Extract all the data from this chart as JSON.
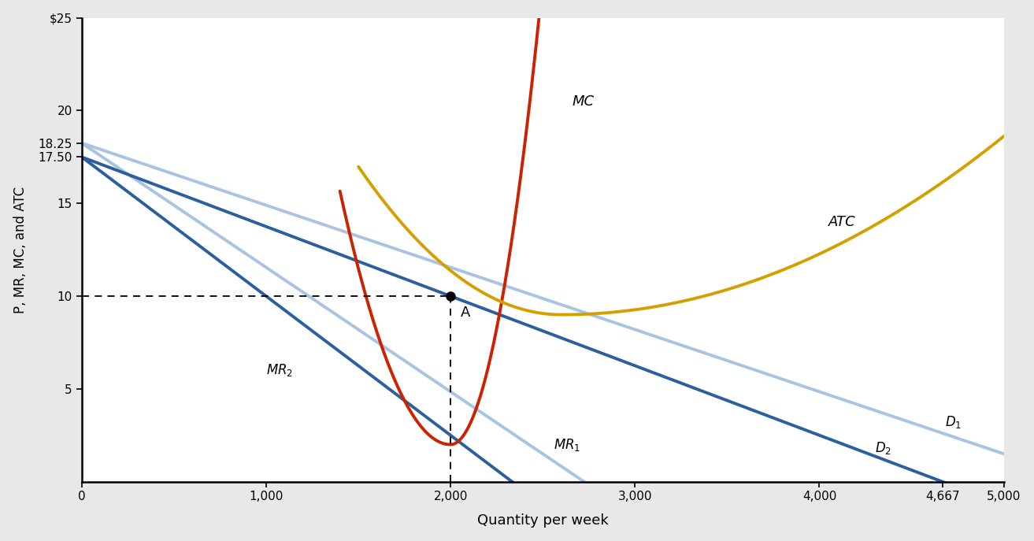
{
  "xlabel": "Quantity per week",
  "ylabel": "P, MR, MC, and ATC",
  "xlim": [
    0,
    5000
  ],
  "ylim": [
    0,
    25
  ],
  "D1_color": "#a8c4e0",
  "D2_color": "#2c5f9e",
  "MR1_color": "#a8c4e0",
  "MR2_color": "#2c5f9e",
  "MC_color": "#cc2200",
  "ATC_color": "#d4a000",
  "D1_intercept": 18.25,
  "D1_x_end": 5000,
  "D1_y_end": 1.5,
  "D2_intercept": 17.5,
  "D2_x_through": 2000,
  "D2_y_through": 10.0,
  "point_A_x": 2000,
  "point_A_y": 10,
  "background_color": "#ffffff",
  "shadow_color": "#bbbbbb"
}
